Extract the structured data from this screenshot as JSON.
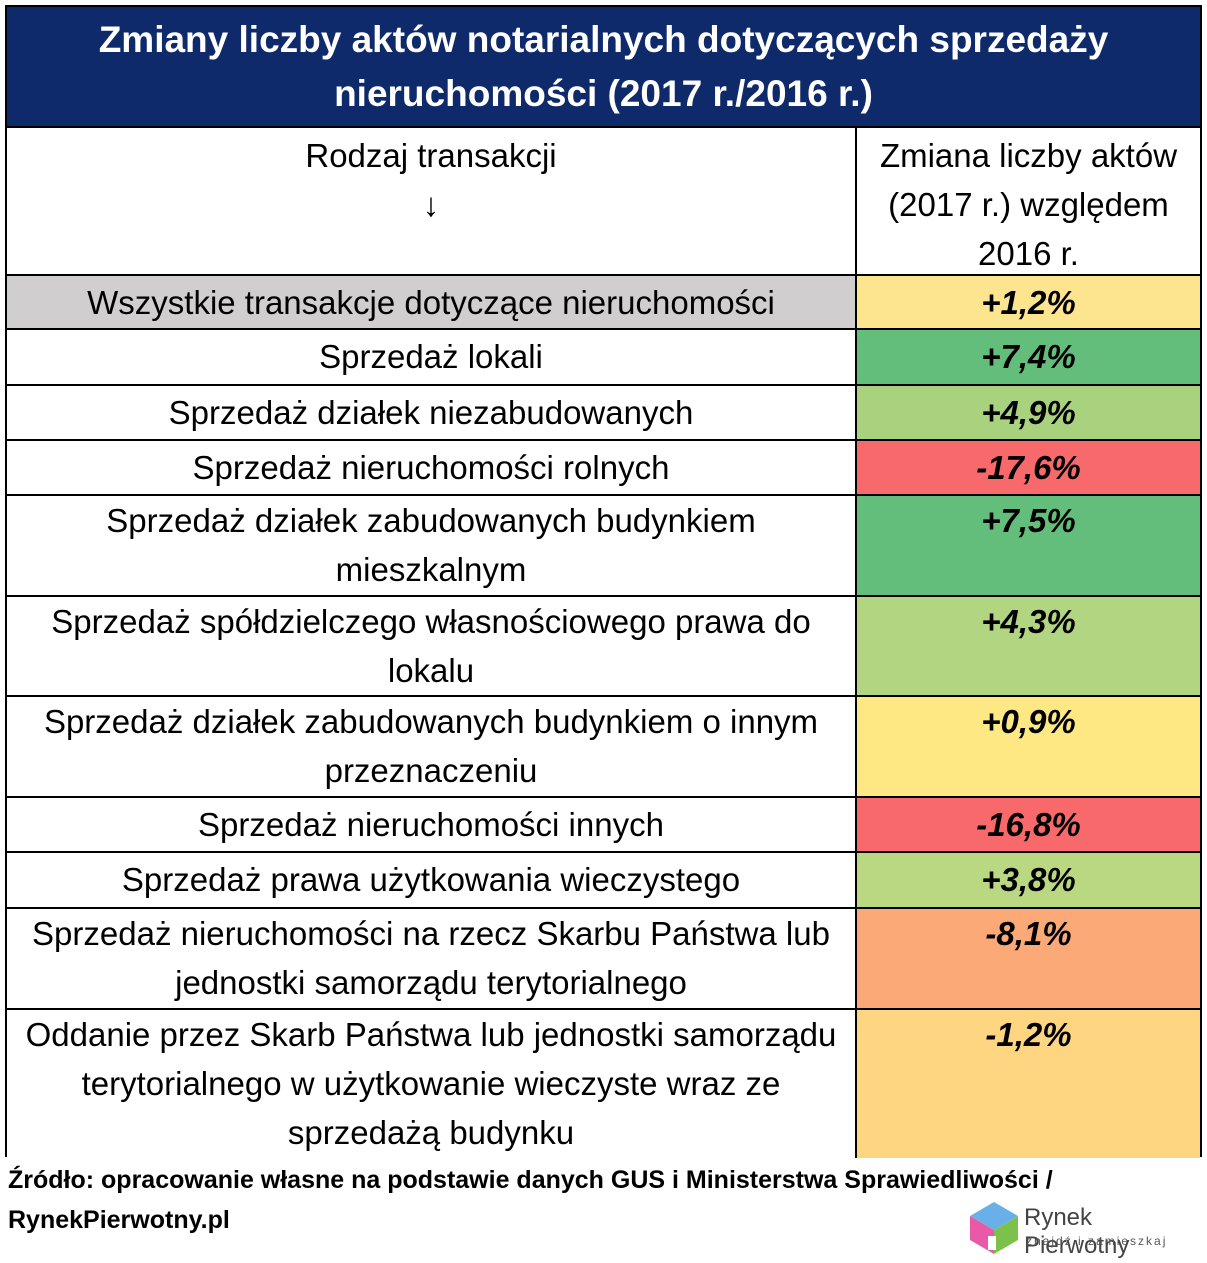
{
  "chart_data": {
    "type": "table",
    "title": "Zmiany liczby aktów notarialnych dotyczących sprzedaży nieruchomości (2017 r./2016 r.)",
    "header": {
      "col1": "Rodzaj transakcji",
      "col1_arrow": "↓",
      "col2": "Zmiana liczby aktów (2017 r.) względem 2016 r."
    },
    "rows": [
      {
        "label": "Wszystkie transakcje dotyczące nieruchomości",
        "value": "+1,2%",
        "change_pct": 1.2,
        "label_bg": "#d0cece",
        "color": "#fde590"
      },
      {
        "label": "Sprzedaż lokali",
        "value": "+7,4%",
        "change_pct": 7.4,
        "label_bg": "#ffffff",
        "color": "#63be7b"
      },
      {
        "label": "Sprzedaż działek niezabudowanych",
        "value": "+4,9%",
        "change_pct": 4.9,
        "label_bg": "#ffffff",
        "color": "#a9d27f"
      },
      {
        "label": "Sprzedaż nieruchomości rolnych",
        "value": "-17,6%",
        "change_pct": -17.6,
        "label_bg": "#ffffff",
        "color": "#f8696b"
      },
      {
        "label": "Sprzedaż działek zabudowanych budynkiem mieszkalnym",
        "value": "+7,5%",
        "change_pct": 7.5,
        "label_bg": "#ffffff",
        "color": "#63be7b"
      },
      {
        "label": "Sprzedaż spółdzielczego własnościowego prawa do lokalu",
        "value": "+4,3%",
        "change_pct": 4.3,
        "label_bg": "#ffffff",
        "color": "#b1d580"
      },
      {
        "label": "Sprzedaż działek zabudowanych budynkiem o innym przeznaczeniu",
        "value": "+0,9%",
        "change_pct": 0.9,
        "label_bg": "#ffffff",
        "color": "#fee883"
      },
      {
        "label": "Sprzedaż nieruchomości innych",
        "value": "-16,8%",
        "change_pct": -16.8,
        "label_bg": "#ffffff",
        "color": "#f8696b"
      },
      {
        "label": "Sprzedaż prawa użytkowania wieczystego",
        "value": "+3,8%",
        "change_pct": 3.8,
        "label_bg": "#ffffff",
        "color": "#bad881"
      },
      {
        "label": "Sprzedaż nieruchomości na rzecz Skarbu Państwa lub jednostki samorządu terytorialnego",
        "value": "-8,1%",
        "change_pct": -8.1,
        "label_bg": "#ffffff",
        "color": "#fbaa77"
      },
      {
        "label": "Oddanie przez Skarb Państwa lub jednostki samorządu terytorialnego w użytkowanie wieczyste wraz ze sprzedażą budynku",
        "value": "-1,2%",
        "change_pct": -1.2,
        "label_bg": "#ffffff",
        "color": "#fed681"
      }
    ]
  },
  "colors": {
    "title_bg": "#0f2a6b",
    "title_text": "#ffffff"
  },
  "source": "Źródło: opracowanie własne na podstawie danych GUS i Ministerstwa Sprawiedliwości / RynekPierwotny.pl",
  "logo": {
    "name": "Rynek Pierwotny",
    "tagline": "znajdź i zamieszkaj",
    "icon": "house-logo-icon"
  }
}
